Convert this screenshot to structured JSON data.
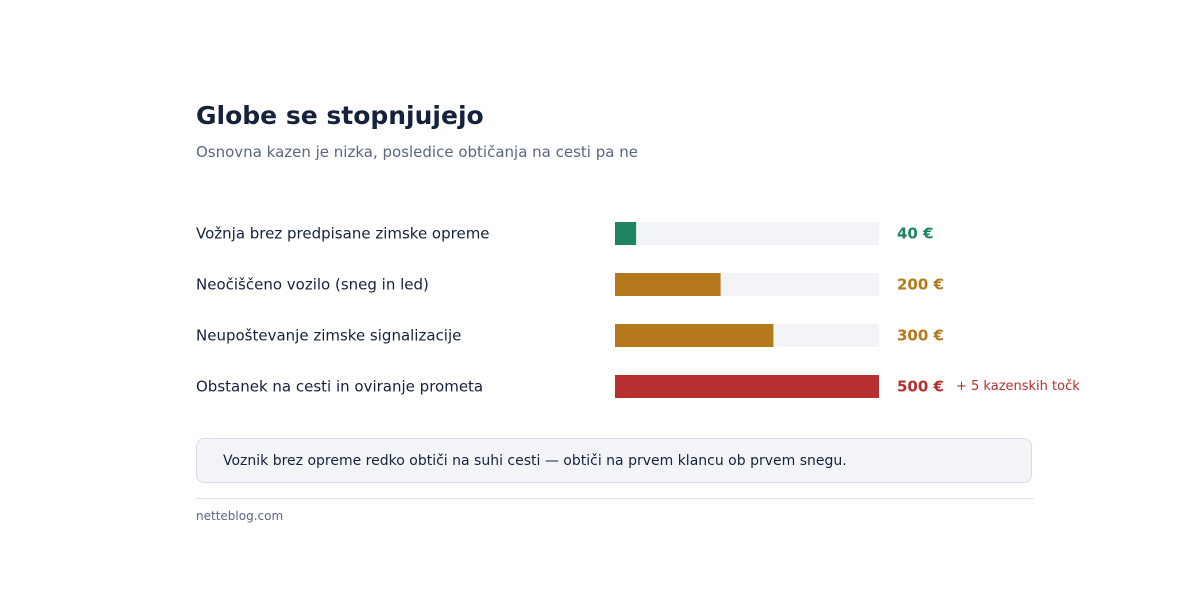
{
  "header": {
    "title": "Globe se stopnjujejo",
    "subtitle": "Osnovna kazen je nizka, posledice obtičanja na cesti pa ne"
  },
  "chart_data": {
    "type": "bar",
    "orientation": "horizontal",
    "xlim": [
      0,
      500
    ],
    "grid": false,
    "legend": "none",
    "categories": [
      "Vožnja brez predpisane zimske opreme",
      "Neočiščeno vozilo (sneg in led)",
      "Neupoštevanje zimske signalizacije",
      "Obstanek na cesti in oviranje prometa"
    ],
    "values": [
      40,
      200,
      300,
      500
    ],
    "value_labels": [
      "40 €",
      "200 €",
      "300 €",
      "500 €"
    ],
    "notes": [
      "",
      "",
      "",
      "+ 5 kazenskih točk"
    ],
    "colors": [
      "#1e8560",
      "#b5791b",
      "#b5791b",
      "#b5302e"
    ],
    "track_color": "#f2f4f8"
  },
  "callout": {
    "text": "Voznik brez opreme redko obtiči na suhi cesti — obtiči na prvem klancu ob prvem snegu."
  },
  "footer": {
    "source": "netteblog.com"
  }
}
